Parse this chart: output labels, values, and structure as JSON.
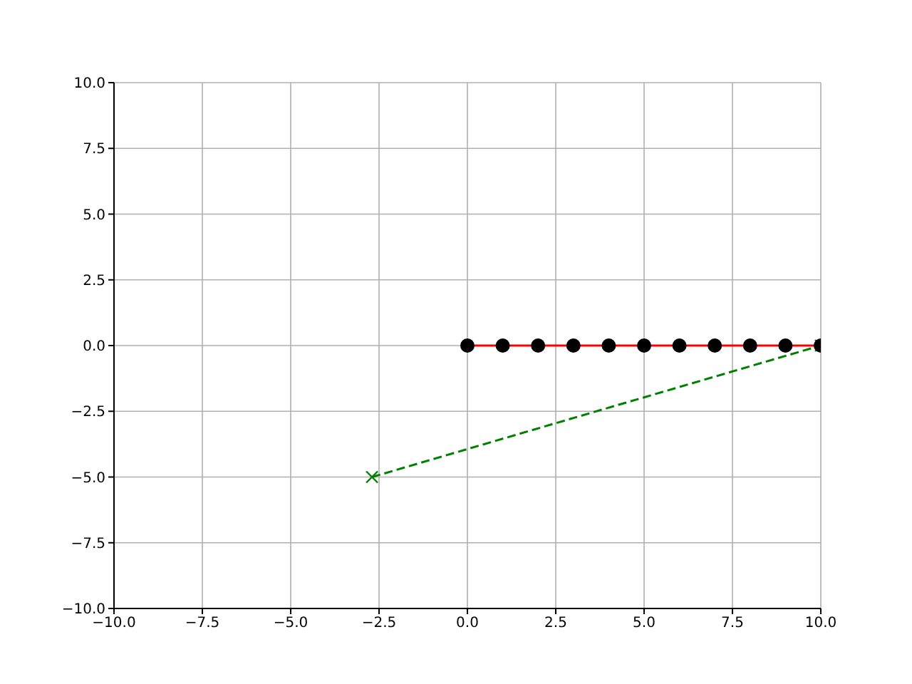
{
  "chart_data": {
    "type": "line",
    "xlim": [
      -10,
      10
    ],
    "ylim": [
      -10,
      10
    ],
    "xticks": [
      {
        "value": -10,
        "label": "−10.0"
      },
      {
        "value": -7.5,
        "label": "−7.5"
      },
      {
        "value": -5,
        "label": "−5.0"
      },
      {
        "value": -2.5,
        "label": "−2.5"
      },
      {
        "value": 0,
        "label": "0.0"
      },
      {
        "value": 2.5,
        "label": "2.5"
      },
      {
        "value": 5,
        "label": "5.0"
      },
      {
        "value": 7.5,
        "label": "7.5"
      },
      {
        "value": 10,
        "label": "10.0"
      }
    ],
    "yticks": [
      {
        "value": -10,
        "label": "−10.0"
      },
      {
        "value": -7.5,
        "label": "−7.5"
      },
      {
        "value": -5,
        "label": "−5.0"
      },
      {
        "value": -2.5,
        "label": "−2.5"
      },
      {
        "value": 0,
        "label": "0.0"
      },
      {
        "value": 2.5,
        "label": "2.5"
      },
      {
        "value": 5,
        "label": "5.0"
      },
      {
        "value": 7.5,
        "label": "7.5"
      },
      {
        "value": 10,
        "label": "10.0"
      }
    ],
    "grid": true,
    "series": [
      {
        "color": "#008000",
        "line_style": "dashed",
        "marker": "cross",
        "x": [
          -2.7,
          10
        ],
        "values": [
          -5,
          0
        ]
      },
      {
        "color": "#ff0000",
        "line_style": "solid",
        "marker": "none",
        "x": [
          0,
          10
        ],
        "values": [
          0,
          0
        ]
      },
      {
        "type": "scatter",
        "color": "#000000",
        "marker": "circle",
        "x": [
          0,
          1,
          2,
          3,
          4,
          5,
          6,
          7,
          8,
          9,
          10
        ],
        "values": [
          0,
          0,
          0,
          0,
          0,
          0,
          0,
          0,
          0,
          0,
          0
        ]
      }
    ]
  }
}
